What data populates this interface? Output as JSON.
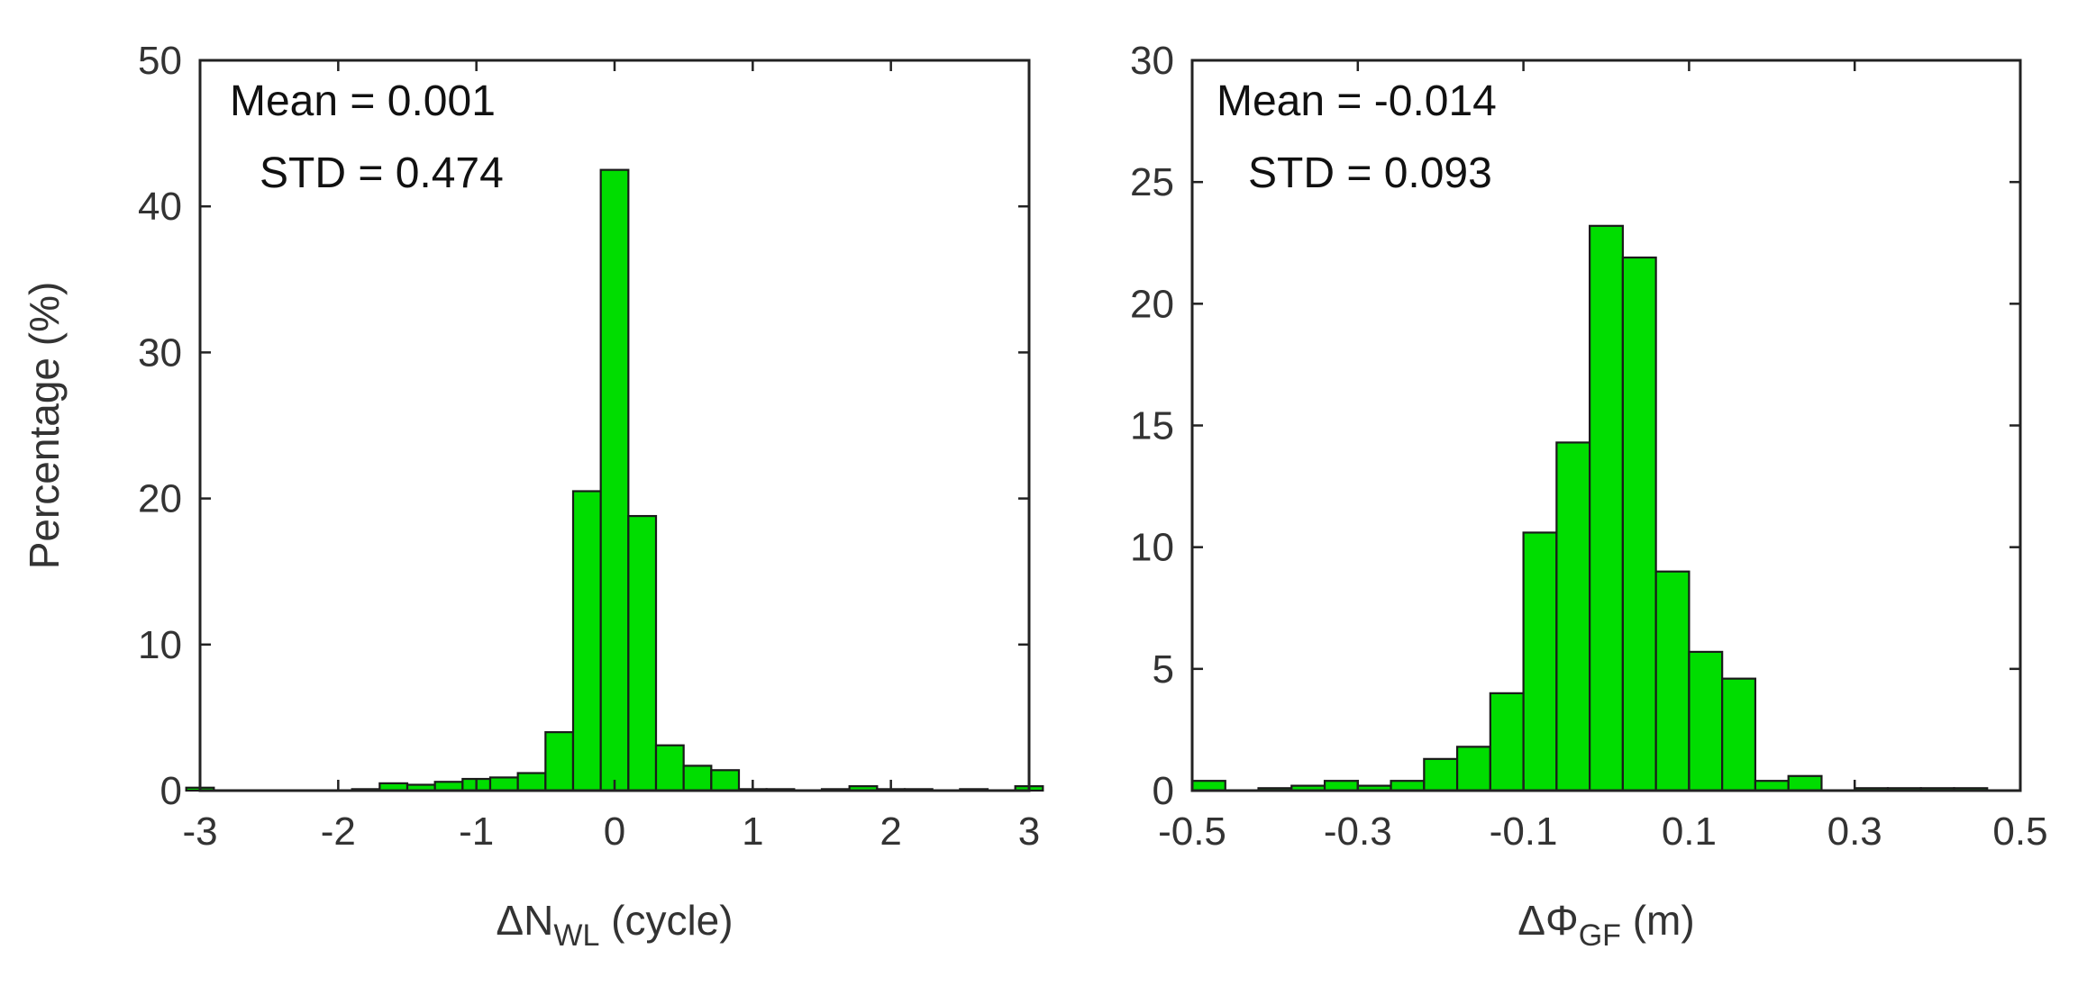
{
  "chart_data": [
    {
      "type": "bar",
      "title": "",
      "xlabel": "ΔN",
      "xlabel_subscript": "WL",
      "xlabel_unit": " (cycle)",
      "ylabel": "Percentage (%)",
      "xlim": [
        -3,
        3
      ],
      "ylim": [
        0,
        50
      ],
      "xticks": [
        -3,
        -2,
        -1,
        0,
        1,
        2,
        3
      ],
      "xtick_labels": [
        "-3",
        "-2",
        "-1",
        "0",
        "1",
        "2",
        "3"
      ],
      "yticks": [
        0,
        10,
        20,
        30,
        40,
        50
      ],
      "ytick_labels": [
        "0",
        "10",
        "20",
        "30",
        "40",
        "50"
      ],
      "bin_width": 0.2,
      "bin_centers": [
        -3.0,
        -1.8,
        -1.6,
        -1.4,
        -1.2,
        -1.0,
        -0.8,
        -0.6,
        -0.4,
        -0.2,
        0.0,
        0.2,
        0.4,
        0.6,
        0.8,
        1.0,
        1.2,
        1.6,
        1.8,
        2.0,
        2.2,
        2.6,
        3.0
      ],
      "values": [
        0.2,
        0.1,
        0.5,
        0.4,
        0.6,
        0.8,
        0.9,
        1.2,
        4.0,
        20.5,
        42.5,
        18.8,
        3.1,
        1.7,
        1.4,
        0.1,
        0.1,
        0.1,
        0.3,
        0.1,
        0.1,
        0.1,
        0.3
      ],
      "annotations": [
        "Mean = 0.001",
        "STD = 0.474"
      ],
      "bar_color": "#00dd00",
      "edge_color": "#1a1a1a"
    },
    {
      "type": "bar",
      "title": "",
      "xlabel": "ΔΦ",
      "xlabel_subscript": "GF",
      "xlabel_unit": " (m)",
      "ylabel": "",
      "xlim": [
        -0.5,
        0.5
      ],
      "ylim": [
        0,
        30
      ],
      "xticks": [
        -0.5,
        -0.3,
        -0.1,
        0.1,
        0.3,
        0.5
      ],
      "xtick_labels": [
        "-0.5",
        "-0.3",
        "-0.1",
        "0.1",
        "0.3",
        "0.5"
      ],
      "yticks": [
        0,
        5,
        10,
        15,
        20,
        25,
        30
      ],
      "ytick_labels": [
        "0",
        "5",
        "10",
        "15",
        "20",
        "25",
        "30"
      ],
      "bin_width": 0.04,
      "bin_centers": [
        -0.48,
        -0.4,
        -0.36,
        -0.32,
        -0.28,
        -0.24,
        -0.2,
        -0.16,
        -0.12,
        -0.08,
        -0.04,
        0.0,
        0.04,
        0.08,
        0.12,
        0.16,
        0.2,
        0.24,
        0.32,
        0.36,
        0.4,
        0.44
      ],
      "values": [
        0.4,
        0.1,
        0.2,
        0.4,
        0.2,
        0.4,
        1.3,
        1.8,
        4.0,
        10.6,
        14.3,
        23.2,
        21.9,
        9.0,
        5.7,
        4.6,
        0.4,
        0.6,
        0.1,
        0.1,
        0.1,
        0.1
      ],
      "annotations": [
        "Mean = -0.014",
        "STD = 0.093"
      ],
      "bar_color": "#00dd00",
      "edge_color": "#1a1a1a"
    }
  ]
}
